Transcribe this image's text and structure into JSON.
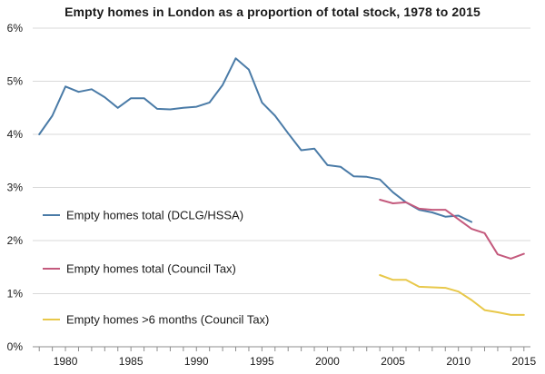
{
  "chart_data": {
    "type": "line",
    "title": "Empty homes in London as a proportion of total stock, 1978 to 2015",
    "xlabel": "",
    "ylabel": "",
    "xlim": [
      1978,
      2015
    ],
    "ylim": [
      0,
      6
    ],
    "x_ticks": [
      1980,
      1985,
      1990,
      1995,
      2000,
      2005,
      2010,
      2015
    ],
    "y_ticks": [
      {
        "value": 0,
        "label": "0%"
      },
      {
        "value": 1,
        "label": "1%"
      },
      {
        "value": 2,
        "label": "2%"
      },
      {
        "value": 3,
        "label": "3%"
      },
      {
        "value": 4,
        "label": "4%"
      },
      {
        "value": 5,
        "label": "5%"
      },
      {
        "value": 6,
        "label": "6%"
      }
    ],
    "grid": "horizontal",
    "legend_position": "inline-left",
    "series": [
      {
        "name": "Empty homes total (DCLG/HSSA)",
        "color": "#4a7ba7",
        "x": [
          1978,
          1979,
          1980,
          1981,
          1982,
          1983,
          1984,
          1985,
          1986,
          1987,
          1988,
          1989,
          1990,
          1991,
          1992,
          1993,
          1994,
          1995,
          1996,
          1997,
          1998,
          1999,
          2000,
          2001,
          2002,
          2003,
          2004,
          2005,
          2006,
          2007,
          2008,
          2009,
          2010,
          2011
        ],
        "values": [
          4.0,
          4.35,
          4.9,
          4.8,
          4.85,
          4.7,
          4.5,
          4.68,
          4.68,
          4.48,
          4.47,
          4.5,
          4.52,
          4.6,
          4.93,
          5.43,
          5.22,
          4.6,
          4.35,
          4.02,
          3.7,
          3.73,
          3.42,
          3.39,
          3.21,
          3.2,
          3.15,
          2.91,
          2.72,
          2.58,
          2.53,
          2.45,
          2.47,
          2.35
        ]
      },
      {
        "name": "Empty homes total (Council Tax)",
        "color": "#c45a7d",
        "x": [
          2004,
          2005,
          2006,
          2007,
          2008,
          2009,
          2010,
          2011,
          2012,
          2013,
          2014,
          2015
        ],
        "values": [
          2.77,
          2.7,
          2.72,
          2.6,
          2.58,
          2.58,
          2.4,
          2.22,
          2.14,
          1.74,
          1.66,
          1.75
        ]
      },
      {
        "name": "Empty homes >6 months (Council Tax)",
        "color": "#e8c84a",
        "x": [
          2004,
          2005,
          2006,
          2007,
          2008,
          2009,
          2010,
          2011,
          2012,
          2013,
          2014,
          2015
        ],
        "values": [
          1.35,
          1.26,
          1.26,
          1.13,
          1.12,
          1.11,
          1.04,
          0.88,
          0.69,
          0.65,
          0.6,
          0.6
        ]
      }
    ]
  },
  "colors": {
    "grid": "#d9d9d9",
    "axis": "#8c8c8c"
  }
}
